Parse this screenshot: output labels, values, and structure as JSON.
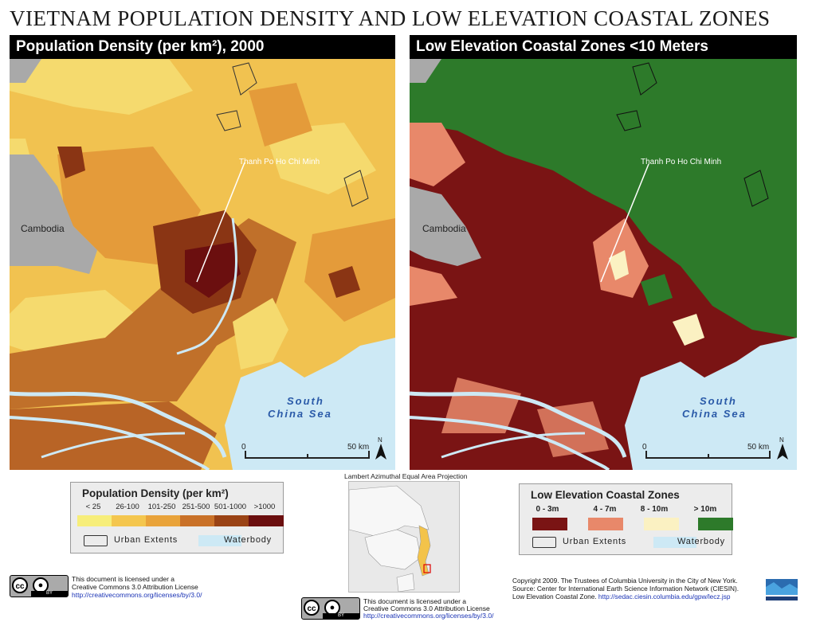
{
  "title": "VIETNAM POPULATION DENSITY AND LOW ELEVATION COASTAL ZONES",
  "left_panel": {
    "header": "Population Density (per km²), 2000",
    "country_label": "Cambodia",
    "city_label": "Thanh Po Ho Chi Minh",
    "sea_label_1": "South",
    "sea_label_2": "China Sea",
    "scale_zero": "0",
    "scale_end": "50 km",
    "north": "N"
  },
  "right_panel": {
    "header": "Low Elevation Coastal Zones <10 Meters",
    "country_label": "Cambodia",
    "city_label": "Thanh Po Ho Chi Minh",
    "sea_label_1": "South",
    "sea_label_2": "China Sea",
    "scale_zero": "0",
    "scale_end": "50 km",
    "north": "N"
  },
  "projection": "Lambert Azimuthal Equal Area Projection",
  "legend_population": {
    "title": "Population Density (per km²)",
    "classes": [
      {
        "label": "< 25",
        "color": "#f7ee7a"
      },
      {
        "label": "26-100",
        "color": "#f4c64e"
      },
      {
        "label": "101-250",
        "color": "#e9a33a"
      },
      {
        "label": "251-500",
        "color": "#c97128"
      },
      {
        "label": "501-1000",
        "color": "#9a4315"
      },
      {
        "label": ">1000",
        "color": "#6b0f0f"
      }
    ],
    "urban_label": "Urban Extents",
    "water_label": "Waterbody"
  },
  "legend_lecz": {
    "title": "Low Elevation Coastal Zones",
    "classes": [
      {
        "label": "0 - 3m",
        "color": "#7a1414"
      },
      {
        "label": "4 - 7m",
        "color": "#e8886a"
      },
      {
        "label": "8 - 10m",
        "color": "#fbf1c2"
      },
      {
        "label": "> 10m",
        "color": "#2d7a2a"
      }
    ],
    "urban_label": "Urban Extents",
    "water_label": "Waterbody"
  },
  "license_left": {
    "line1": "This document is licensed under a",
    "line2": "Creative Commons 3.0 Attribution License",
    "line3": "http://creativecommons.org/licenses/by/3.0/",
    "cc": "cc",
    "by": "BY"
  },
  "license_center": {
    "line1": "This document is licensed under a",
    "line2": "Creative Commons 3.0 Attribution License",
    "line3": "http://creativecommons.org/licenses/by/3.0/",
    "cc": "cc",
    "by": "BY"
  },
  "credits": {
    "line1": "Copyright 2009. The Trustees of Columbia University in the City of New York.",
    "line2": "Source: Center for International Earth Science Information Network (CIESIN).",
    "line3_text": "Low Elevation Coastal Zone. ",
    "line3_link": "http://sedac.ciesin.columbia.edu/gpw/lecz.jsp"
  },
  "colors": {
    "water": "#cde9f5",
    "land_gray": "#a9a9a9",
    "sea_text": "#2a5aa8"
  }
}
